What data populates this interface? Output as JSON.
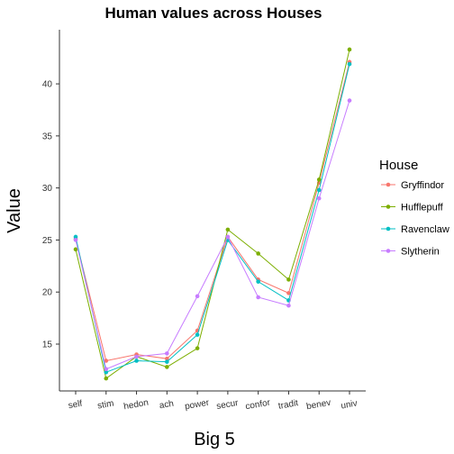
{
  "chart_data": {
    "type": "line",
    "title": "Human values across Houses",
    "xlabel": "Big 5",
    "ylabel": "Value",
    "categories": [
      "self",
      "stim",
      "hedon",
      "ach",
      "power",
      "secur",
      "confor",
      "tradit",
      "benev",
      "univ"
    ],
    "ylim": [
      10.5,
      45.2
    ],
    "yticks": [
      15,
      20,
      25,
      30,
      35,
      40
    ],
    "grid": false,
    "legend": {
      "title": "House",
      "position": "right"
    },
    "series": [
      {
        "name": "Gryffindor",
        "color": "#F8766D",
        "values": [
          25.1,
          13.4,
          14.0,
          13.6,
          16.3,
          25.3,
          21.2,
          19.9,
          30.5,
          42.1
        ]
      },
      {
        "name": "Hufflepuff",
        "color": "#7CAE00",
        "values": [
          24.1,
          11.7,
          13.8,
          12.8,
          14.6,
          26.0,
          23.7,
          21.2,
          30.8,
          43.3
        ]
      },
      {
        "name": "Ravenclaw",
        "color": "#00BFC4",
        "values": [
          25.3,
          12.3,
          13.4,
          13.3,
          15.9,
          25.0,
          21.0,
          19.2,
          29.8,
          41.9
        ]
      },
      {
        "name": "Slytherin",
        "color": "#C77CFF",
        "values": [
          25.0,
          12.6,
          13.8,
          14.1,
          19.6,
          25.3,
          19.5,
          18.7,
          29.0,
          38.4
        ]
      }
    ]
  }
}
